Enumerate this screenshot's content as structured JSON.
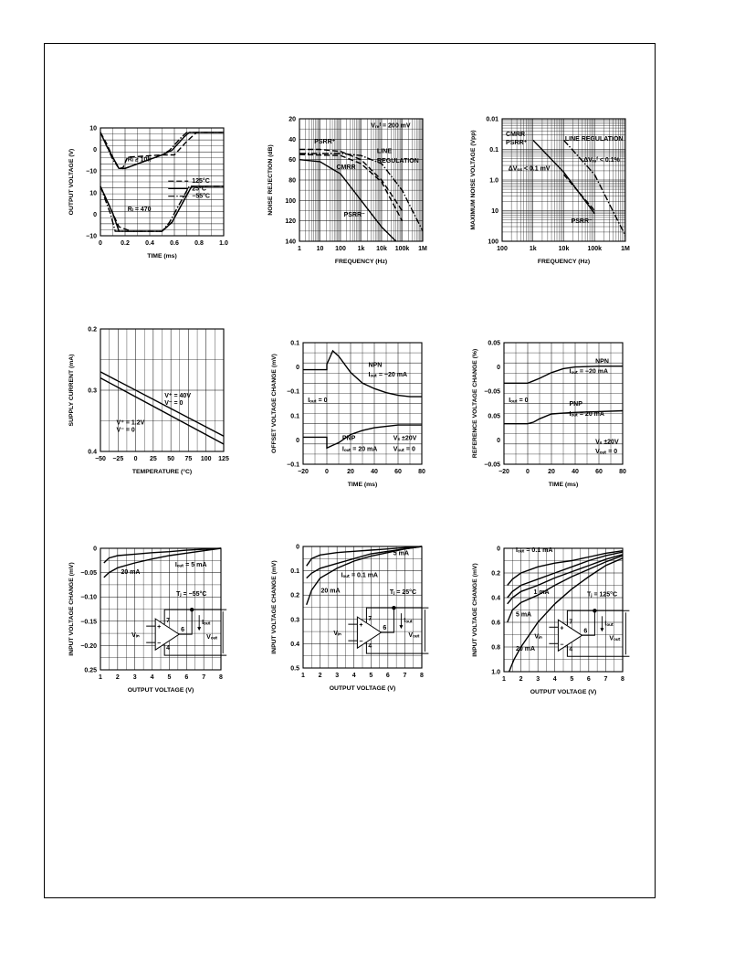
{
  "chart_data": [
    {
      "id": "c1",
      "type": "line",
      "xlabel": "TIME (ms)",
      "ylabel": "OUTPUT VOLTAGE (V)",
      "xlim": [
        0,
        1.0
      ],
      "ylim": [
        -12,
        36
      ],
      "xticks": [
        "0",
        "0.2",
        "0.4",
        "0.6",
        "0.8",
        "1.0"
      ],
      "yticks": [
        "10",
        "0",
        "−10",
        "10",
        "0",
        "−10"
      ],
      "legend": [
        "125°C",
        "25°C",
        "−55°C"
      ],
      "annotations": [
        "Rₗ ≥ 10k",
        "Rₗ = 470"
      ],
      "series": [
        {
          "name": "125°C",
          "style": "dash",
          "x": [
            0,
            0.05,
            0.1,
            0.14,
            0.18,
            0.22,
            0.5,
            0.6,
            0.7,
            0.78,
            1.0
          ],
          "y": [
            34,
            29,
            23,
            19,
            18,
            23,
            24,
            24,
            30,
            34,
            34
          ]
        },
        {
          "name": "25°C",
          "style": "solid",
          "x": [
            0,
            0.05,
            0.1,
            0.15,
            0.2,
            0.5,
            0.58,
            0.68,
            0.72,
            1.0
          ],
          "y": [
            34,
            28,
            23,
            18,
            18,
            24,
            26,
            32,
            34,
            34
          ]
        },
        {
          "name": "−55°C",
          "style": "dashdot",
          "x": [
            0,
            0.05,
            0.1,
            0.15,
            0.2,
            0.5,
            0.56,
            0.66,
            0.7,
            1.0
          ],
          "y": [
            34,
            28,
            22,
            18,
            18,
            24,
            26,
            32,
            34,
            34
          ]
        },
        {
          "name": "125°C",
          "style": "dash",
          "x": [
            0,
            0.05,
            0.1,
            0.15,
            0.25,
            0.5,
            0.58,
            0.7,
            0.74,
            1.0
          ],
          "y": [
            10,
            4,
            -2,
            -8,
            -10,
            -10,
            -6,
            6,
            10,
            10
          ]
        },
        {
          "name": "25°C",
          "style": "solid",
          "x": [
            0,
            0.05,
            0.1,
            0.15,
            0.2,
            0.5,
            0.58,
            0.7,
            0.74,
            1.0
          ],
          "y": [
            10,
            4,
            -2,
            -10,
            -10,
            -10,
            -6,
            6,
            10,
            10
          ]
        },
        {
          "name": "−55°C",
          "style": "dashdot",
          "x": [
            0,
            0.04,
            0.08,
            0.12,
            0.2,
            0.5,
            0.56,
            0.68,
            0.72,
            1.0
          ],
          "y": [
            10,
            4,
            -2,
            -10,
            -10,
            -10,
            -6,
            6,
            10,
            10
          ]
        }
      ]
    },
    {
      "id": "c2",
      "type": "line",
      "xlabel": "FREQUENCY (Hz)",
      "ylabel": "NOISE REJECTION (dB)",
      "xscale": "log",
      "xlim": [
        1,
        1000000
      ],
      "ylim": [
        20,
        140
      ],
      "xticks": [
        "1",
        "10",
        "100",
        "1k",
        "10k",
        "100k",
        "1M"
      ],
      "yticks": [
        "20",
        "40",
        "60",
        "80",
        "100",
        "120",
        "140"
      ],
      "annotations": [
        "Vᵣₑᶠ = 200 mV",
        "PSRR⁺",
        "LINE",
        "REGULATION",
        "CMRR",
        "PSRR⁻"
      ],
      "series": [
        {
          "name": "PSRR⁺",
          "style": "dash",
          "x": [
            1,
            10,
            100,
            1000,
            10000,
            100000
          ],
          "y": [
            110,
            110,
            108,
            100,
            80,
            50
          ]
        },
        {
          "name": "LINE REGULATION",
          "style": "dashdot",
          "x": [
            1,
            100,
            1000,
            10000,
            100000,
            1000000
          ],
          "y": [
            106,
            106,
            104,
            96,
            70,
            30
          ]
        },
        {
          "name": "CMRR",
          "style": "dash",
          "x": [
            1,
            100,
            1000,
            10000,
            100000
          ],
          "y": [
            105,
            104,
            96,
            78,
            40
          ]
        },
        {
          "name": "PSRR⁻",
          "style": "solid",
          "x": [
            1,
            10,
            100,
            1000,
            10000,
            50000
          ],
          "y": [
            100,
            98,
            86,
            60,
            34,
            20
          ]
        }
      ]
    },
    {
      "id": "c3",
      "type": "line",
      "xlabel": "FREQUENCY (Hz)",
      "ylabel": "MAXIMUM NOISE VOLTAGE (Vpp)",
      "xscale": "log",
      "yscale": "log",
      "xlim": [
        100,
        1000000
      ],
      "ylim": [
        0.01,
        100
      ],
      "xticks": [
        "100",
        "1k",
        "10k",
        "100k",
        "1M"
      ],
      "yticks": [
        "0.01",
        "0.1",
        "1.0",
        "10",
        "100"
      ],
      "annotations": [
        "CMRR",
        "PSRR⁺",
        "LINE REGULATION",
        "ΔVₒₛ < 0.1 mV",
        "ΔVᵣₑᶠ < 0.1%",
        "PSRR⁻"
      ],
      "series": [
        {
          "name": "CMRR / PSRR⁺",
          "style": "solid",
          "x": [
            1000,
            10000,
            100000
          ],
          "y": [
            20,
            1.8,
            0.08
          ]
        },
        {
          "name": "LINE REGULATION",
          "style": "dashdot",
          "x": [
            10000,
            100000,
            1000000
          ],
          "y": [
            20,
            1.5,
            0.015
          ]
        },
        {
          "name": "PSRR⁻",
          "style": "dash",
          "x": [
            10000,
            100000
          ],
          "y": [
            1.5,
            0.1
          ]
        }
      ]
    },
    {
      "id": "c4",
      "type": "line",
      "xlabel": "TEMPERATURE (°C)",
      "ylabel": "SUPPLY CURRENT (mA)",
      "xlim": [
        -50,
        125
      ],
      "ylim": [
        0.2,
        0.4
      ],
      "xticks": [
        "−50",
        "−25",
        "0",
        "25",
        "50",
        "75",
        "100",
        "125"
      ],
      "yticks": [
        "0.2",
        "0.3",
        "0.4"
      ],
      "annotations": [
        "V⁺ = 40V",
        "V⁻ = 0",
        "V⁺ = 1.2V",
        "V⁻ = 0"
      ],
      "series": [
        {
          "name": "V⁺ = 40V",
          "style": "solid",
          "x": [
            -50,
            125
          ],
          "y": [
            0.33,
            0.225
          ]
        },
        {
          "name": "V⁺ = 1.2V",
          "style": "solid",
          "x": [
            -50,
            125
          ],
          "y": [
            0.32,
            0.212
          ]
        }
      ]
    },
    {
      "id": "c5",
      "type": "line",
      "xlabel": "TIME (ms)",
      "ylabel": "OFFSET VOLTAGE CHANGE (mV)",
      "xlim": [
        -20,
        80
      ],
      "ylim": [
        -0.1,
        0.35
      ],
      "xticks": [
        "−20",
        "0",
        "20",
        "40",
        "60",
        "80"
      ],
      "yticks": [
        "0.1",
        "0",
        "−0.1",
        "0.1",
        "0",
        "−0.1"
      ],
      "annotations": [
        "NPN",
        "Iₒᵤₜ = −20 mA",
        "Iₒᵤₜ = 0",
        "PNP",
        "Iₒᵤₜ = 20 mA",
        "Vₛ ±20V",
        "Vₒᵤₜ = 0"
      ],
      "series": [
        {
          "name": "NPN",
          "style": "solid",
          "x": [
            -20,
            0,
            0,
            5,
            10,
            20,
            30,
            40,
            50,
            60,
            70,
            80
          ],
          "y": [
            0.25,
            0.25,
            0.27,
            0.32,
            0.3,
            0.24,
            0.2,
            0.18,
            0.165,
            0.155,
            0.15,
            0.15
          ]
        },
        {
          "name": "PNP",
          "style": "solid",
          "x": [
            -20,
            0,
            0,
            5,
            10,
            20,
            30,
            40,
            50,
            60,
            70,
            80
          ],
          "y": [
            0,
            0,
            -0.04,
            -0.03,
            -0.02,
            0.01,
            0.025,
            0.035,
            0.04,
            0.045,
            0.045,
            0.045
          ]
        }
      ]
    },
    {
      "id": "c6",
      "type": "line",
      "xlabel": "TIME (ms)",
      "ylabel": "REFERENCE VOLTAGE CHANGE (%)",
      "xlim": [
        -20,
        80
      ],
      "ylim": [
        -0.05,
        0.1
      ],
      "xticks": [
        "−20",
        "0",
        "20",
        "40",
        "60",
        "80"
      ],
      "yticks": [
        "0.05",
        "0",
        "−0.05",
        "0.05",
        "0",
        "−0.05"
      ],
      "annotations": [
        "NPN",
        "Iₒᵤₜ = −20 mA",
        "Iₒᵤₜ = 0",
        "PNP",
        "Iₒᵤₜ = 20 mA",
        "Vₛ ±20V",
        "Vₒᵤₜ = 0"
      ],
      "series": [
        {
          "name": "NPN",
          "style": "solid",
          "x": [
            -20,
            0,
            5,
            10,
            20,
            30,
            40,
            60,
            80
          ],
          "y": [
            0.05,
            0.05,
            0.053,
            0.056,
            0.063,
            0.068,
            0.07,
            0.071,
            0.071
          ]
        },
        {
          "name": "PNP",
          "style": "solid",
          "x": [
            -20,
            0,
            5,
            10,
            20,
            30,
            40,
            60,
            80
          ],
          "y": [
            0,
            0,
            0.002,
            0.006,
            0.012,
            0.013,
            0.014,
            0.015,
            0.016
          ]
        }
      ]
    },
    {
      "id": "c7",
      "type": "line",
      "xlabel": "OUTPUT VOLTAGE (V)",
      "ylabel": "INPUT VOLTAGE CHANGE (mV)",
      "xlim": [
        1,
        8
      ],
      "ylim": [
        0,
        0.25
      ],
      "yreverse": true,
      "xticks": [
        "1",
        "2",
        "3",
        "4",
        "5",
        "6",
        "7",
        "8"
      ],
      "yticks": [
        "0",
        "−0.05",
        "−0.10",
        "−0.15",
        "−0.20",
        "0.25"
      ],
      "annotations": [
        "Iₒᵤₜ = 5 mA",
        "20 mA",
        "Tⱼ = −55°C",
        "7",
        "6",
        "4",
        "Iₒᵤₜ",
        "Vᵢₙ",
        "Vₒᵤₜ",
        "+",
        "−"
      ],
      "series": [
        {
          "name": "Iₒᵤₜ = 5 mA",
          "style": "solid",
          "x": [
            1.2,
            1.5,
            2,
            3,
            4,
            5,
            6,
            7,
            8
          ],
          "y": [
            0.03,
            0.02,
            0.015,
            0.012,
            0.009,
            0.007,
            0.004,
            0.002,
            0
          ]
        },
        {
          "name": "20 mA",
          "style": "solid",
          "x": [
            1.2,
            1.5,
            2,
            3,
            4,
            5,
            6,
            7,
            8
          ],
          "y": [
            0.06,
            0.05,
            0.04,
            0.03,
            0.022,
            0.015,
            0.01,
            0.005,
            0
          ]
        }
      ]
    },
    {
      "id": "c8",
      "type": "line",
      "xlabel": "OUTPUT VOLTAGE (V)",
      "ylabel": "INPUT VOLTAGE CHANGE (mV)",
      "xlim": [
        1,
        8
      ],
      "ylim": [
        0,
        0.5
      ],
      "yreverse": true,
      "xticks": [
        "1",
        "2",
        "3",
        "4",
        "5",
        "6",
        "7",
        "8"
      ],
      "yticks": [
        "0",
        "0.1",
        "0.2",
        "0.3",
        "0.4",
        "0.5"
      ],
      "annotations": [
        "5 mA",
        "Iₒᵤₜ = 0.1 mA",
        "20 mA",
        "Tⱼ = 25°C",
        "7",
        "6",
        "4",
        "Iₒᵤₜ",
        "Vᵢₙ",
        "Vₒᵤₜ",
        "+",
        "−"
      ],
      "series": [
        {
          "name": "5 mA",
          "style": "solid",
          "x": [
            1.2,
            1.5,
            2,
            3,
            4,
            5,
            6,
            7,
            8
          ],
          "y": [
            0.08,
            0.05,
            0.035,
            0.025,
            0.02,
            0.015,
            0.01,
            0.005,
            0
          ]
        },
        {
          "name": "Iₒᵤₜ = 0.1 mA",
          "style": "solid",
          "x": [
            1.2,
            1.5,
            2,
            3,
            4,
            5,
            6,
            7,
            8
          ],
          "y": [
            0.13,
            0.11,
            0.09,
            0.07,
            0.05,
            0.03,
            0.02,
            0.01,
            0
          ]
        },
        {
          "name": "20 mA",
          "style": "solid",
          "x": [
            1.2,
            1.5,
            2,
            3,
            4,
            5,
            6,
            7,
            8
          ],
          "y": [
            0.24,
            0.18,
            0.13,
            0.09,
            0.06,
            0.04,
            0.025,
            0.01,
            0
          ]
        }
      ]
    },
    {
      "id": "c9",
      "type": "line",
      "xlabel": "OUTPUT VOLTAGE (V)",
      "ylabel": "INPUT VOLTAGE CHANGE (mV)",
      "xlim": [
        1,
        8
      ],
      "ylim": [
        0,
        1.0
      ],
      "yreverse": true,
      "xticks": [
        "1",
        "2",
        "3",
        "4",
        "5",
        "6",
        "7",
        "8"
      ],
      "yticks": [
        "0",
        "0.2",
        "0.4",
        "0.6",
        "0.8",
        "1.0"
      ],
      "annotations": [
        "Iₒᵤₜ = 0.1 mA",
        "1 mA",
        "5 mA",
        "20 mA",
        "Tⱼ = 125°C",
        "7",
        "6",
        "4",
        "Iₒᵤₜ",
        "Vᵢₙ",
        "Vₒᵤₜ",
        "+",
        "−"
      ],
      "series": [
        {
          "name": "Iₒᵤₜ = 0.1 mA",
          "style": "solid",
          "x": [
            1.2,
            1.5,
            2,
            3,
            4,
            5,
            6,
            7,
            8
          ],
          "y": [
            0.3,
            0.25,
            0.2,
            0.15,
            0.12,
            0.1,
            0.07,
            0.04,
            0.02
          ]
        },
        {
          "name": "0.5 mA",
          "style": "solid",
          "x": [
            1.2,
            1.5,
            2,
            3,
            4,
            5,
            6,
            7,
            8
          ],
          "y": [
            0.4,
            0.35,
            0.3,
            0.25,
            0.2,
            0.15,
            0.1,
            0.06,
            0.03
          ]
        },
        {
          "name": "1 mA",
          "style": "solid",
          "x": [
            1.2,
            1.5,
            2,
            3,
            4,
            5,
            6,
            7,
            8
          ],
          "y": [
            0.45,
            0.4,
            0.35,
            0.3,
            0.24,
            0.19,
            0.14,
            0.09,
            0.05
          ]
        },
        {
          "name": "5 mA",
          "style": "solid",
          "x": [
            1.2,
            1.5,
            2,
            3,
            4,
            5,
            6,
            7,
            8
          ],
          "y": [
            0.6,
            0.5,
            0.44,
            0.38,
            0.3,
            0.23,
            0.17,
            0.11,
            0.06
          ]
        },
        {
          "name": "20 mA",
          "style": "solid",
          "x": [
            1.3,
            1.6,
            2,
            2.5,
            3,
            4,
            5,
            6,
            7,
            8
          ],
          "y": [
            1.0,
            0.9,
            0.8,
            0.7,
            0.6,
            0.45,
            0.33,
            0.23,
            0.14,
            0.08
          ]
        }
      ]
    }
  ]
}
